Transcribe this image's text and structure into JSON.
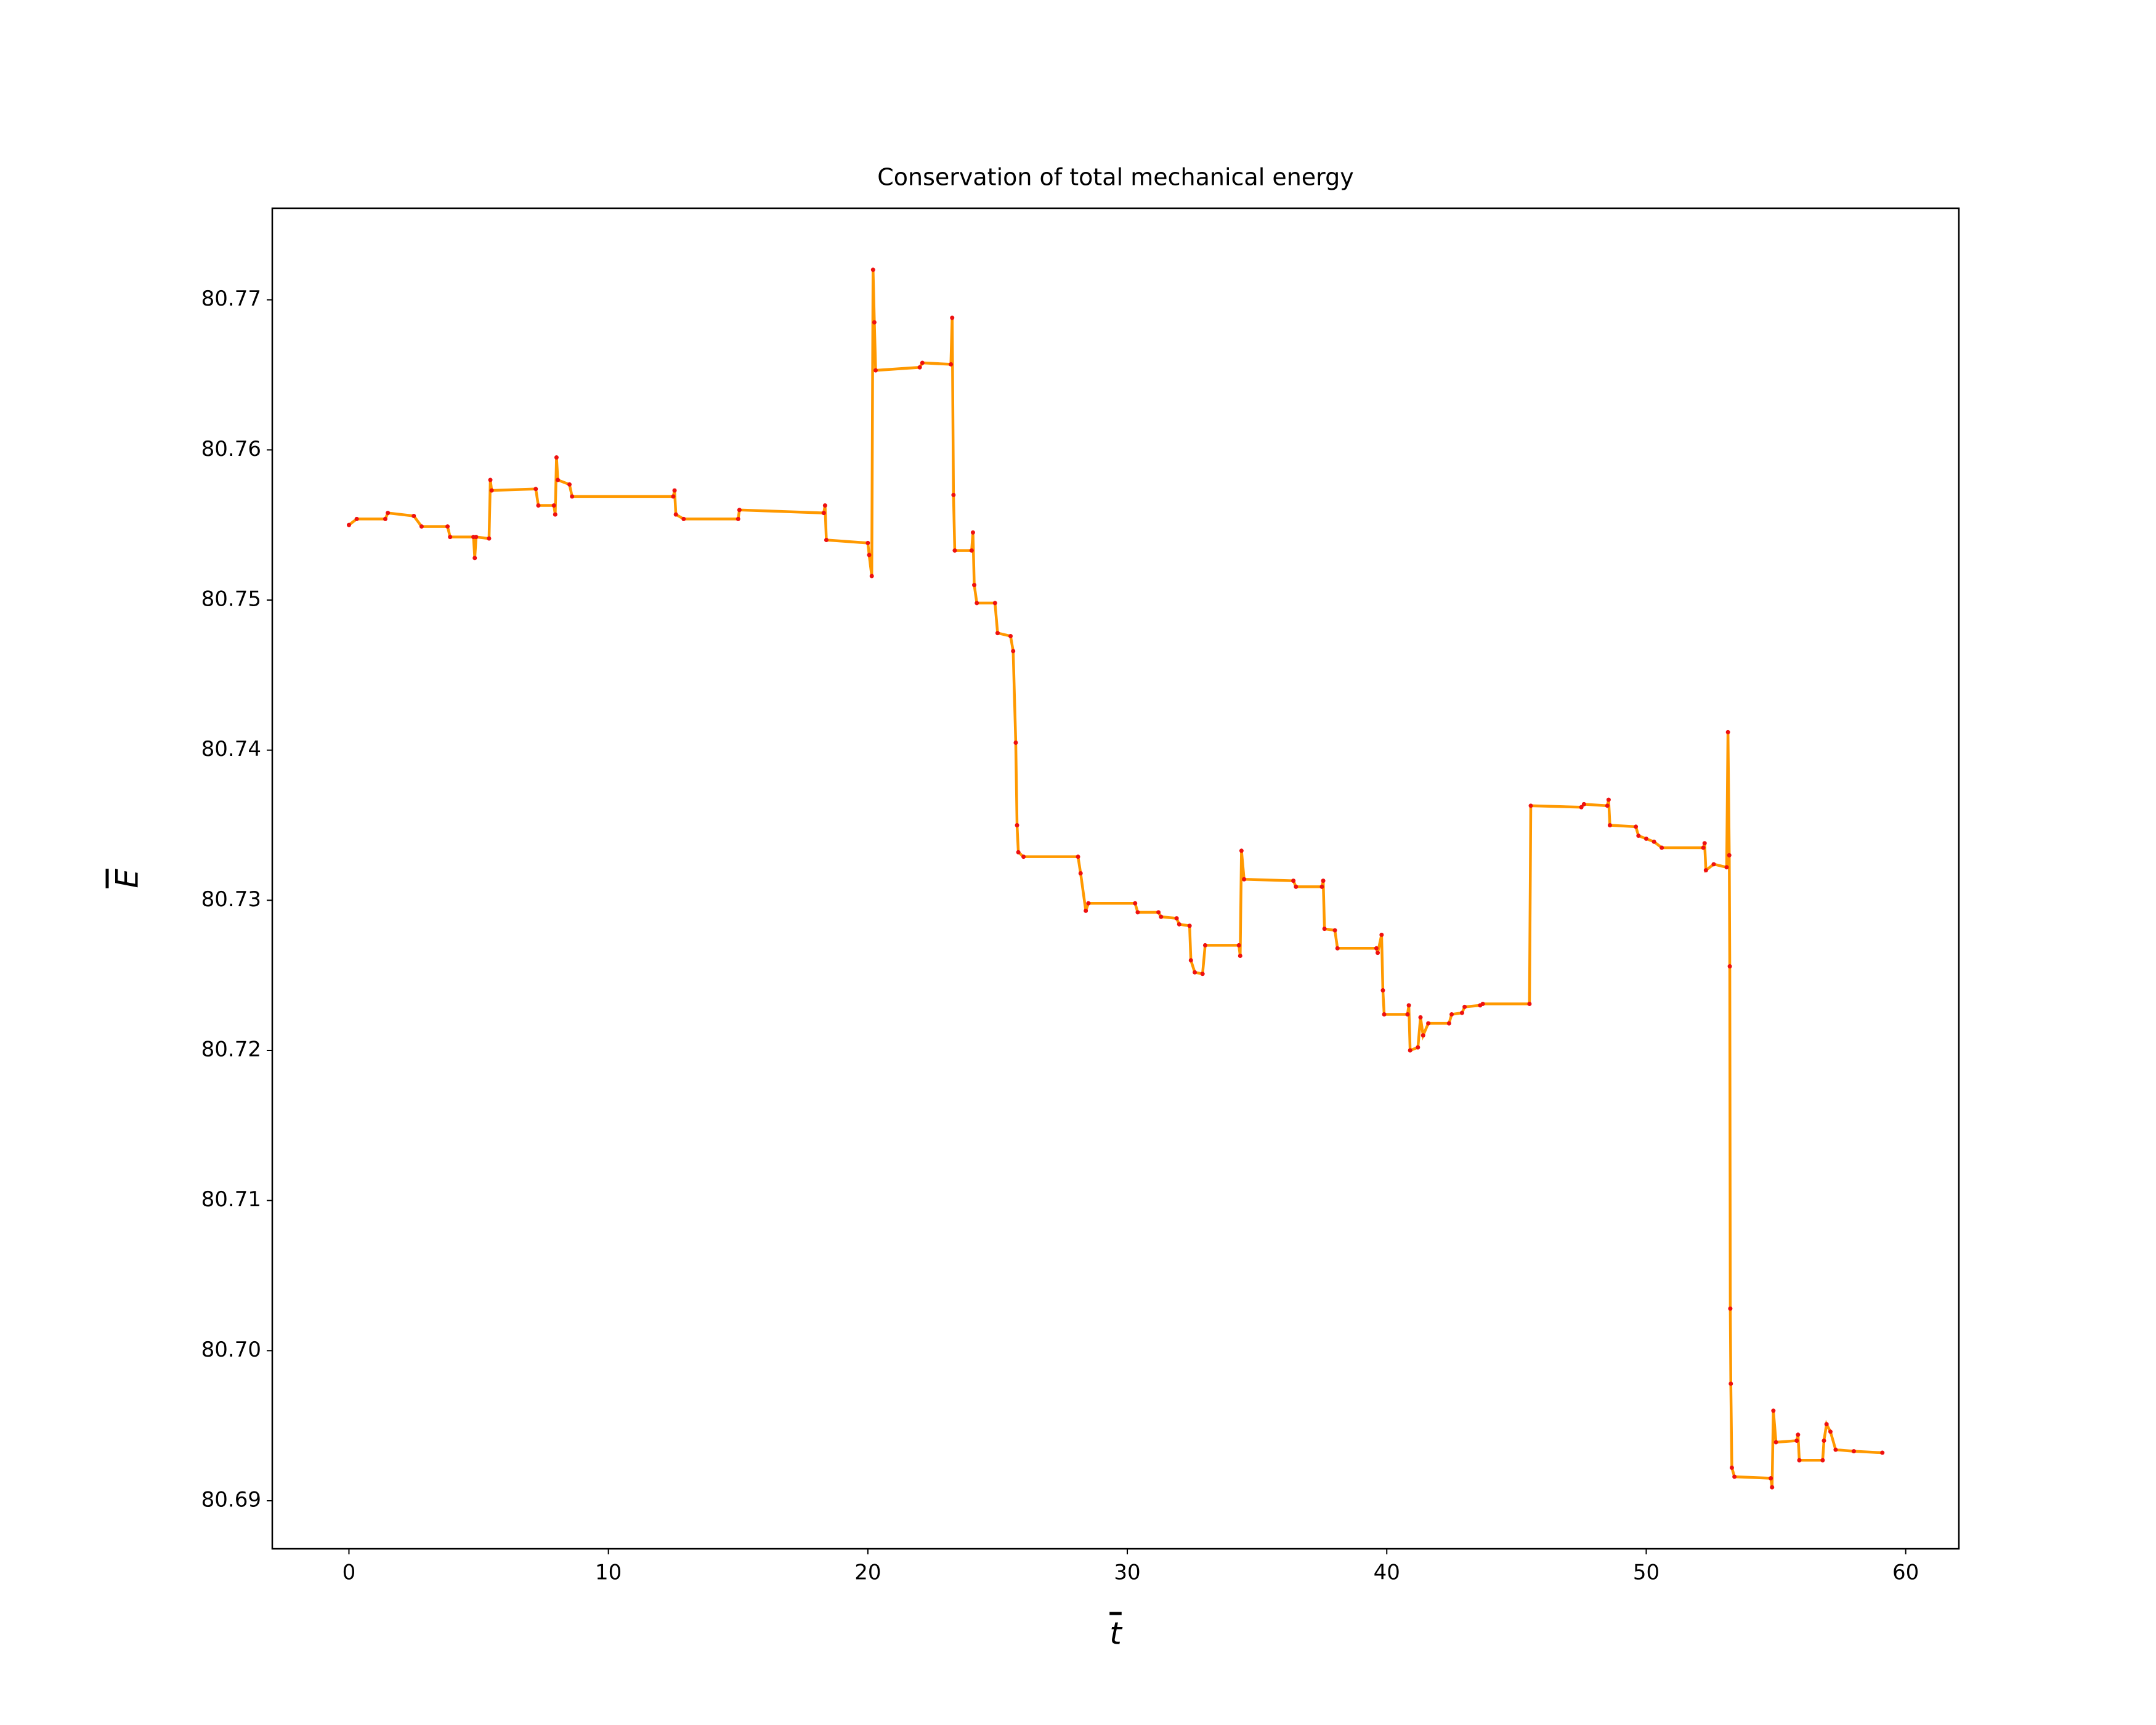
{
  "chart_data": {
    "type": "line",
    "title": "Conservation of total mechanical energy",
    "x_label": "t",
    "y_label": "E",
    "x": [
      0,
      0.3,
      1.4,
      1.5,
      2.5,
      2.8,
      3.8,
      3.9,
      4.8,
      4.85,
      4.9,
      5.4,
      5.45,
      5.5,
      7.2,
      7.3,
      7.9,
      7.95,
      8.0,
      8.05,
      8.5,
      8.6,
      12.5,
      12.55,
      12.6,
      12.9,
      15.0,
      15.05,
      18.3,
      18.35,
      18.4,
      20.0,
      20.05,
      20.15,
      20.2,
      20.25,
      20.3,
      22.0,
      22.1,
      23.2,
      23.25,
      23.3,
      23.35,
      24.0,
      24.05,
      24.1,
      24.2,
      24.9,
      25.0,
      25.5,
      25.6,
      25.7,
      25.75,
      25.8,
      26.0,
      28.1,
      28.2,
      28.4,
      28.5,
      30.3,
      30.4,
      31.2,
      31.3,
      31.9,
      32.0,
      32.4,
      32.45,
      32.6,
      32.9,
      33.0,
      34.3,
      34.35,
      34.4,
      34.5,
      36.4,
      36.5,
      37.5,
      37.55,
      37.6,
      38.0,
      38.1,
      39.6,
      39.65,
      39.8,
      39.85,
      39.9,
      40.8,
      40.85,
      40.9,
      41.2,
      41.3,
      41.4,
      41.6,
      42.4,
      42.5,
      42.9,
      43.0,
      43.6,
      43.7,
      45.5,
      45.55,
      47.5,
      47.6,
      48.5,
      48.55,
      48.6,
      49.6,
      49.7,
      50.0,
      50.3,
      50.6,
      52.2,
      52.25,
      52.3,
      52.6,
      53.1,
      53.15,
      53.2,
      53.22,
      53.24,
      53.26,
      53.3,
      53.4,
      54.8,
      54.85,
      54.9,
      55.0,
      55.8,
      55.85,
      55.9,
      56.8,
      56.85,
      56.95,
      57.1,
      57.3,
      58.0,
      59.1
    ],
    "series": [
      {
        "color": "#ff9900",
        "marker_color": "#ee1111",
        "values": [
          80.755,
          80.7554,
          80.7554,
          80.7558,
          80.7556,
          80.7549,
          80.7549,
          80.7542,
          80.7542,
          80.7528,
          80.7542,
          80.7541,
          80.758,
          80.7573,
          80.7574,
          80.7563,
          80.7563,
          80.7557,
          80.7595,
          80.758,
          80.7577,
          80.7569,
          80.7569,
          80.7573,
          80.7557,
          80.7554,
          80.7554,
          80.756,
          80.7558,
          80.7563,
          80.754,
          80.7538,
          80.753,
          80.7516,
          80.772,
          80.7685,
          80.7653,
          80.7655,
          80.7658,
          80.7657,
          80.7688,
          80.757,
          80.7533,
          80.7533,
          80.7545,
          80.751,
          80.7498,
          80.7498,
          80.7478,
          80.7476,
          80.7466,
          80.7405,
          80.735,
          80.7332,
          80.7329,
          80.7329,
          80.7318,
          80.7293,
          80.7298,
          80.7298,
          80.7292,
          80.7292,
          80.7289,
          80.7288,
          80.7284,
          80.7283,
          80.726,
          80.7252,
          80.7251,
          80.727,
          80.727,
          80.7263,
          80.7333,
          80.7314,
          80.7313,
          80.7309,
          80.7309,
          80.7313,
          80.7281,
          80.728,
          80.7268,
          80.7268,
          80.7265,
          80.7277,
          80.724,
          80.7224,
          80.7224,
          80.723,
          80.72,
          80.7202,
          80.7222,
          80.721,
          80.7218,
          80.7218,
          80.7224,
          80.7225,
          80.7229,
          80.723,
          80.7231,
          80.7231,
          80.7363,
          80.7362,
          80.7364,
          80.7363,
          80.7367,
          80.735,
          80.7349,
          80.7343,
          80.7341,
          80.7339,
          80.7335,
          80.7335,
          80.7338,
          80.732,
          80.7324,
          80.7322,
          80.7412,
          80.733,
          80.7256,
          80.7028,
          80.6978,
          80.6922,
          80.6916,
          80.6915,
          80.6909,
          80.696,
          80.6939,
          80.694,
          80.6944,
          80.6927,
          80.6927,
          80.694,
          80.6951,
          80.6946,
          80.6934,
          80.6933,
          80.6932
        ]
      }
    ],
    "xlim": [
      -2.955,
      62.05
    ],
    "xticks": [
      0,
      10,
      20,
      30,
      40,
      50,
      60
    ],
    "ylim": [
      80.6868,
      80.7761
    ],
    "yticks": [
      80.69,
      {
        "value": 80.7,
        "label": "80.70"
      },
      80.71,
      80.72,
      80.73,
      80.74,
      80.75,
      80.76,
      80.77
    ],
    "grid": false
  }
}
